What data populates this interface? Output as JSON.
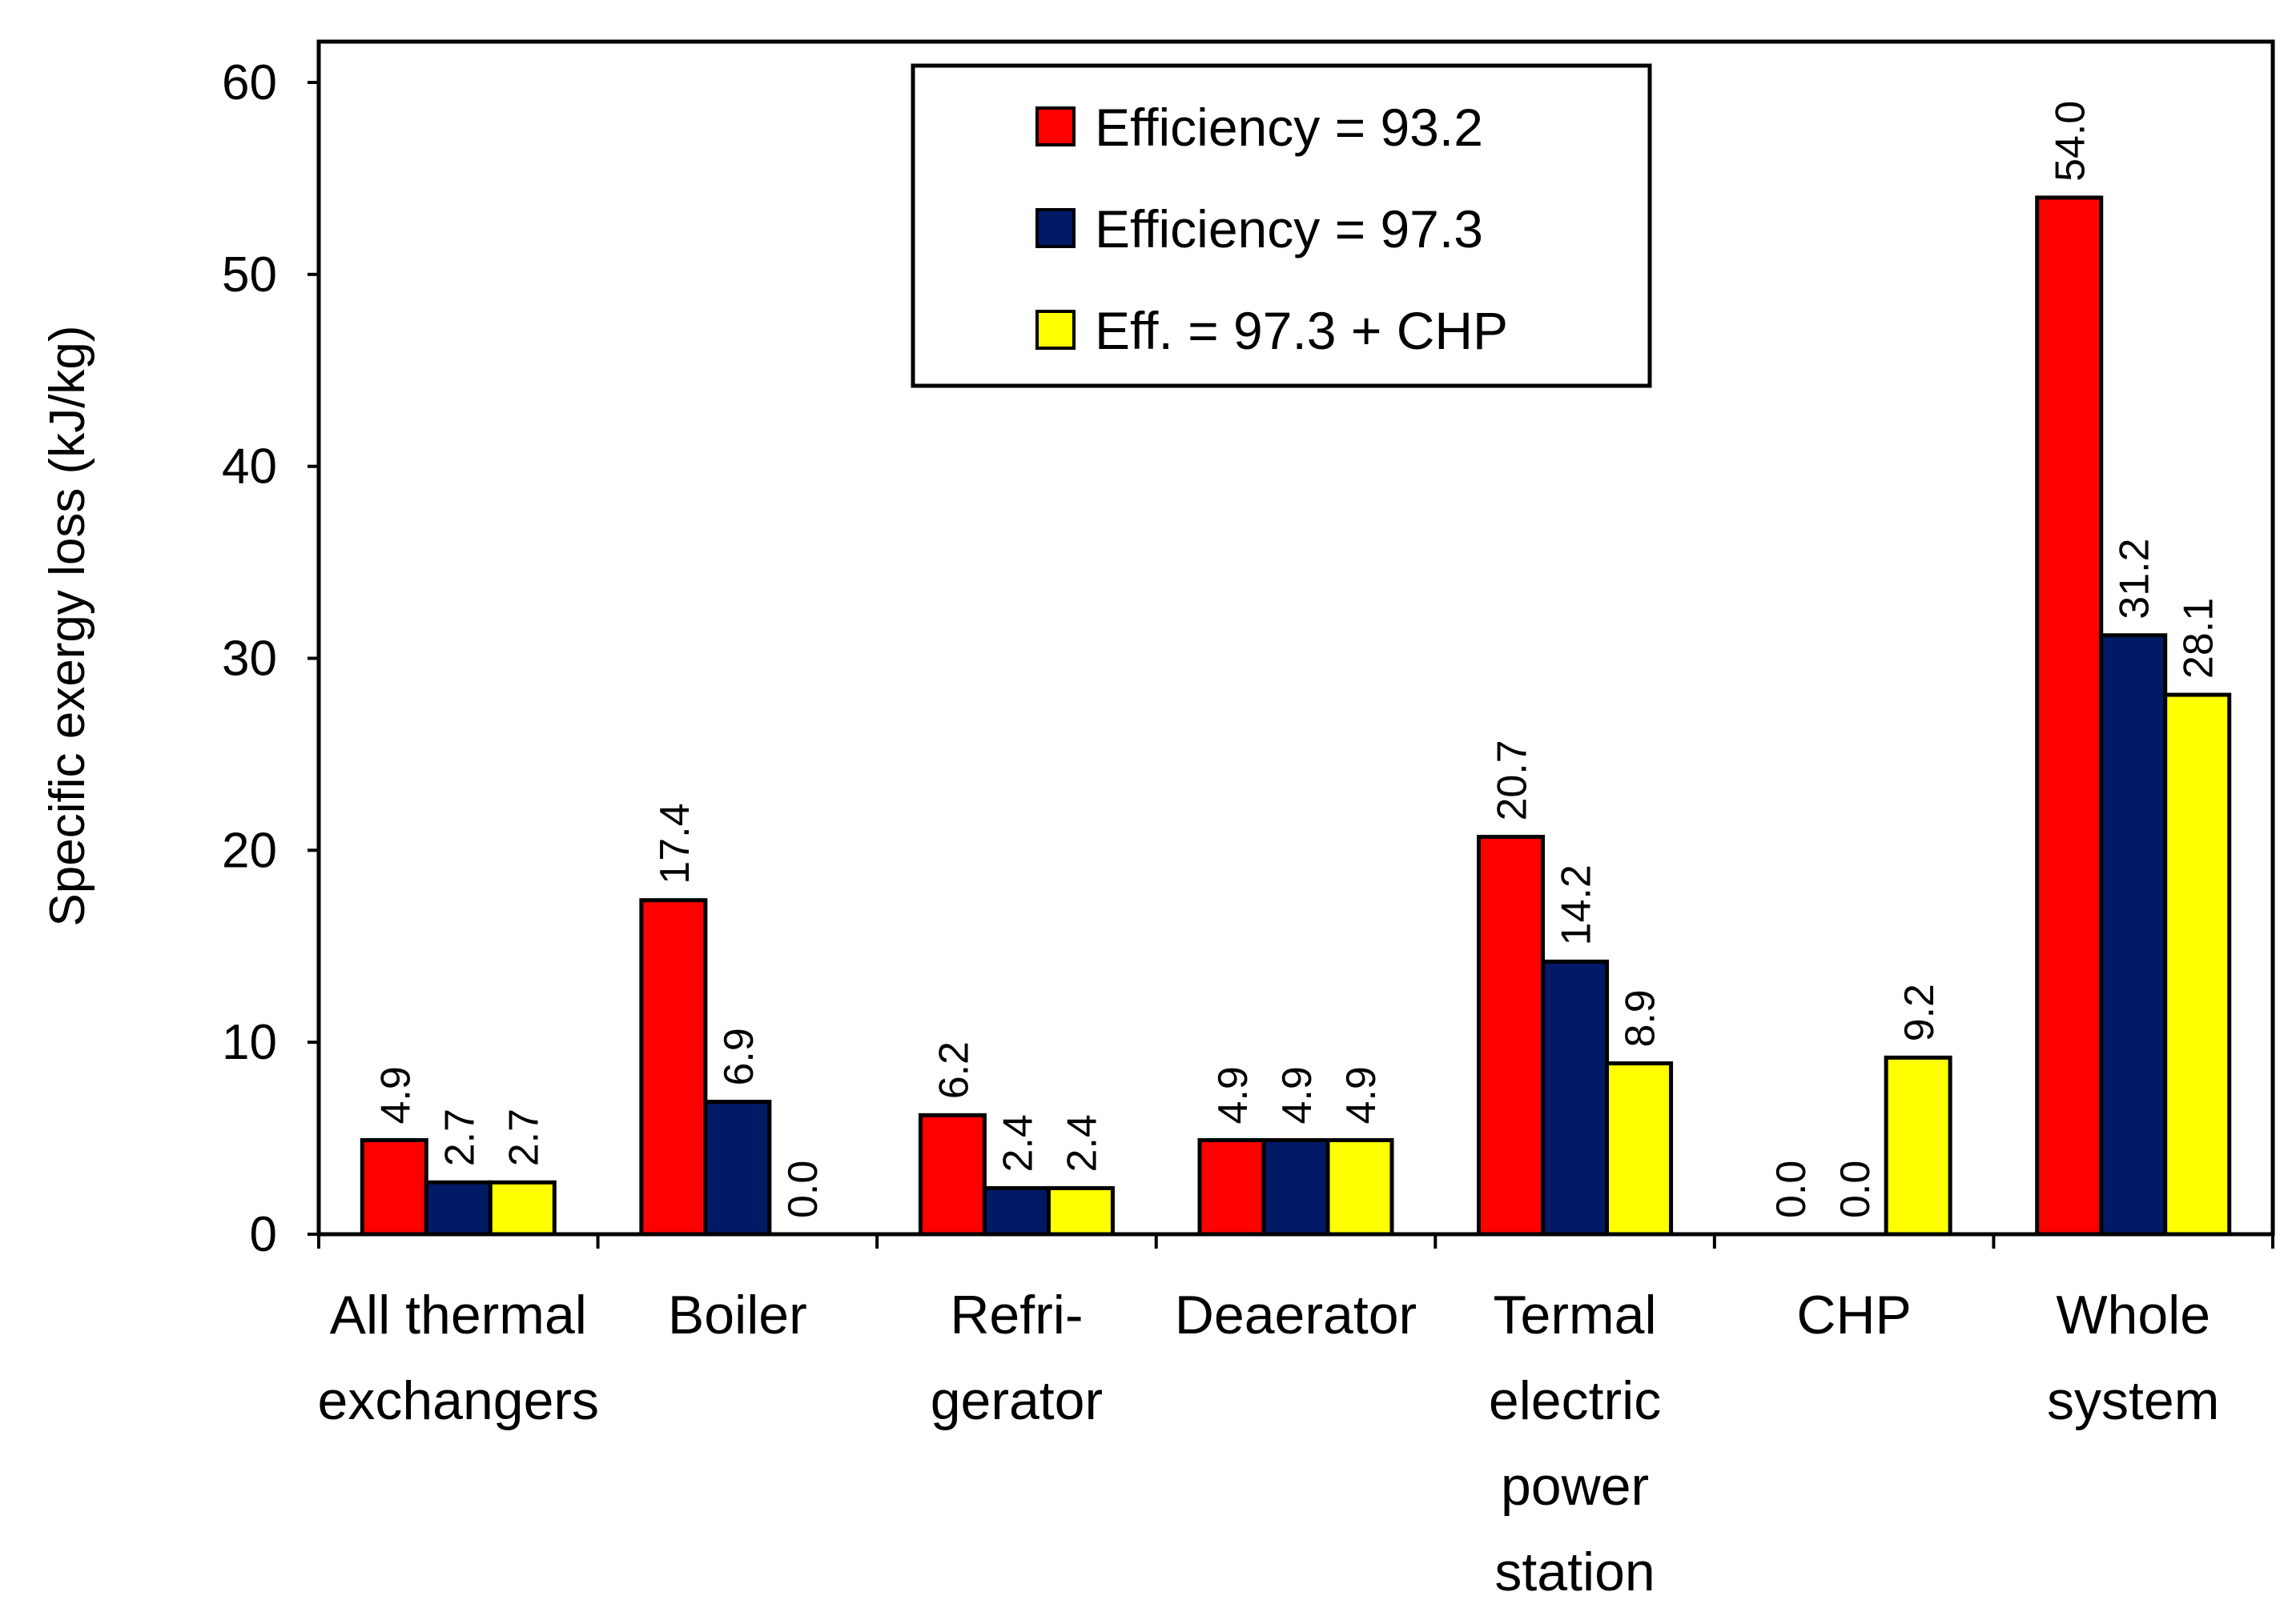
{
  "chart_data": {
    "type": "bar",
    "title": "",
    "xlabel": "",
    "ylabel": "Specific exergy loss (kJ/kg)",
    "ylim": [
      0,
      60
    ],
    "yticks": [
      0,
      10,
      20,
      30,
      40,
      50,
      60
    ],
    "categories": [
      [
        "All thermal",
        "exchangers"
      ],
      [
        "Boiler"
      ],
      [
        "Refri-",
        "gerator"
      ],
      [
        "Deaerator"
      ],
      [
        "Termal",
        "electric",
        "power",
        "station"
      ],
      [
        "CHP"
      ],
      [
        "Whole",
        "system"
      ]
    ],
    "series": [
      {
        "name": "Efficiency = 93.2",
        "color": "#ff0000",
        "values": [
          4.9,
          17.4,
          6.2,
          4.9,
          20.7,
          0.0,
          54.0
        ],
        "labels": [
          "4.9",
          "17.4",
          "6.2",
          "4.9",
          "20.7",
          "0.0",
          "54.0"
        ]
      },
      {
        "name": "Efficiency = 97.3",
        "color": "#001a66",
        "values": [
          2.7,
          6.9,
          2.4,
          4.9,
          14.2,
          0.0,
          31.2
        ],
        "labels": [
          "2.7",
          "6.9",
          "2.4",
          "4.9",
          "14.2",
          "0.0",
          "31.2"
        ]
      },
      {
        "name": "Eff. = 97.3 + CHP",
        "color": "#ffff00",
        "values": [
          2.7,
          0.0,
          2.4,
          4.9,
          8.9,
          9.2,
          28.1
        ],
        "labels": [
          "2.7",
          "0.0",
          "2.4",
          "4.9",
          "8.9",
          "9.2",
          "28.1"
        ]
      }
    ],
    "legend_position": "top-center",
    "grid": false
  }
}
